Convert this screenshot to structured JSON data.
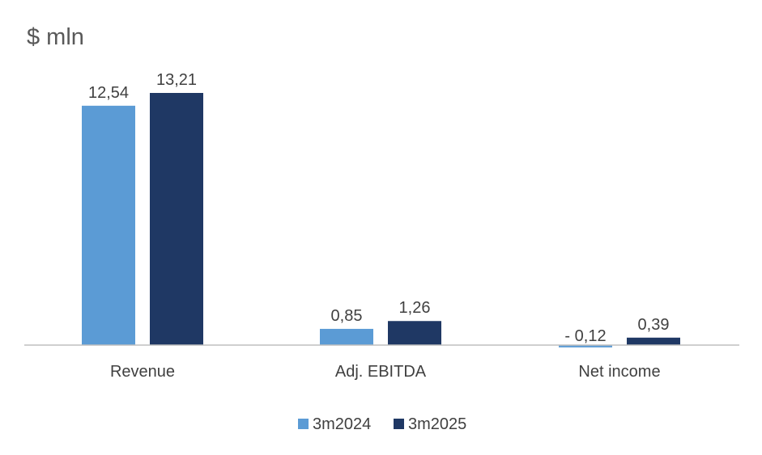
{
  "chart_data": {
    "type": "bar",
    "title": "$ mln",
    "categories": [
      "Revenue",
      "Adj. EBITDA",
      "Net income"
    ],
    "series": [
      {
        "name": "3m2024",
        "values": [
          12.54,
          0.85,
          -0.12
        ],
        "labels": [
          "12,54",
          "0,85",
          "- 0,12"
        ],
        "color": "#5B9BD5"
      },
      {
        "name": "3m2025",
        "values": [
          13.21,
          1.26,
          0.39
        ],
        "labels": [
          "13,21",
          "1,26",
          "0,39"
        ],
        "color": "#1F3864"
      }
    ],
    "xlabel": "",
    "ylabel": "",
    "ylim": [
      -0.2,
      14
    ],
    "grid": false,
    "legend": "bottom"
  }
}
